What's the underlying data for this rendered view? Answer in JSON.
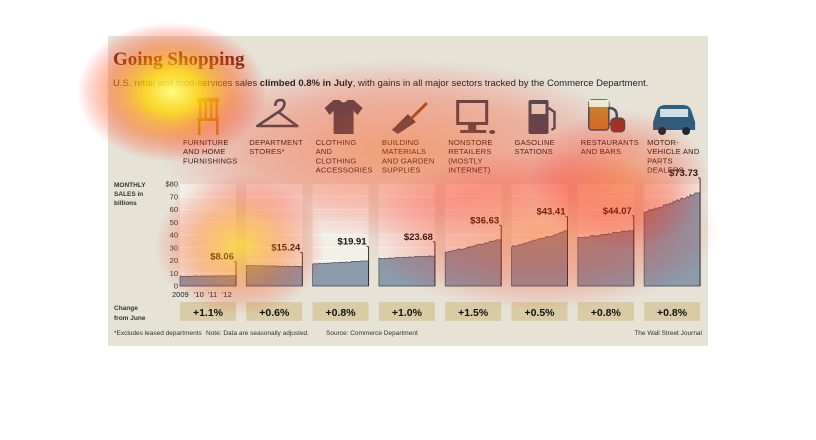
{
  "heading": {
    "title": "Going Shopping",
    "subtitle_pre": "U.S. retail and food-services sales ",
    "subtitle_bold": "climbed 0.8% in July",
    "subtitle_post": ", with gains in all major sectors tracked by the Commerce Department."
  },
  "y_axis_title": [
    "MONTHLY",
    "SALES in",
    "billions"
  ],
  "change_label": [
    "Change",
    "from June"
  ],
  "footnotes": {
    "excludes": "*Excludes leased departments",
    "note": "Note: Data are seasonally adjusted.",
    "source": "Source: Commerce Department",
    "credit": "The Wall Street Journal"
  },
  "chart_data": {
    "type": "area",
    "title": "Going Shopping",
    "ylabel": "MONTHLY SALES in billions",
    "ylim": [
      0,
      80
    ],
    "yticks": [
      "$80",
      "70",
      "60",
      "50",
      "40",
      "30",
      "20",
      "10",
      "0"
    ],
    "xticks": [
      "2009",
      "'10",
      "'11",
      "'12"
    ],
    "grid": true,
    "panels": [
      {
        "name": "FURNITURE AND HOME FURNISHINGS",
        "lines": [
          "FURNITURE",
          "AND HOME",
          "FURNISHINGS"
        ],
        "icon": "chair-icon",
        "start": 7.6,
        "end": 8.06,
        "value_label": "$8.06",
        "change": "+1.1%"
      },
      {
        "name": "DEPARTMENT STORES*",
        "lines": [
          "DEPARTMENT",
          "STORES*"
        ],
        "icon": "hanger-icon",
        "start": 16.0,
        "end": 15.24,
        "value_label": "$15.24",
        "change": "+0.6%"
      },
      {
        "name": "CLOTHING AND CLOTHING ACCESSORIES",
        "lines": [
          "CLOTHING",
          "AND",
          "CLOTHING",
          "ACCESSORIES"
        ],
        "icon": "shirt-icon",
        "start": 17.2,
        "end": 19.91,
        "value_label": "$19.91",
        "change": "+0.8%"
      },
      {
        "name": "BUILDING MATERIALS AND GARDEN SUPPLIES",
        "lines": [
          "BUILDING",
          "MATERIALS",
          "AND GARDEN",
          "SUPPLIES"
        ],
        "icon": "trowel-icon",
        "start": 21.5,
        "end": 23.68,
        "value_label": "$23.68",
        "change": "+1.0%"
      },
      {
        "name": "NONSTORE RETAILERS (MOSTLY INTERNET)",
        "lines": [
          "NONSTORE",
          "RETAILERS",
          "(MOSTLY",
          "INTERNET)"
        ],
        "icon": "computer-icon",
        "start": 26.5,
        "end": 36.63,
        "value_label": "$36.63",
        "change": "+1.5%"
      },
      {
        "name": "GASOLINE STATIONS",
        "lines": [
          "GASOLINE",
          "STATIONS"
        ],
        "icon": "gas-pump-icon",
        "start": 31.0,
        "end": 43.41,
        "value_label": "$43.41",
        "change": "+0.5%"
      },
      {
        "name": "RESTAURANTS AND BARS",
        "lines": [
          "RESTAURANTS",
          "AND BARS"
        ],
        "icon": "beer-mug-icon",
        "start": 37.5,
        "end": 44.07,
        "value_label": "$44.07",
        "change": "+0.8%"
      },
      {
        "name": "MOTOR-VEHICLE AND PARTS DEALERS",
        "lines": [
          "MOTOR-",
          "VEHICLE AND",
          "PARTS",
          "DEALERS"
        ],
        "icon": "car-icon",
        "start": 58.0,
        "end": 73.73,
        "value_label": "$73.73",
        "change": "+0.8%"
      }
    ]
  },
  "colors": {
    "background": "#e6e2d6",
    "panel": "#f2efe7",
    "area": "#8d9aaa",
    "area_line": "#3e5066",
    "icon": "#3f4e5d",
    "change_box": "#d8cba6",
    "title": "#6b2a1a"
  }
}
